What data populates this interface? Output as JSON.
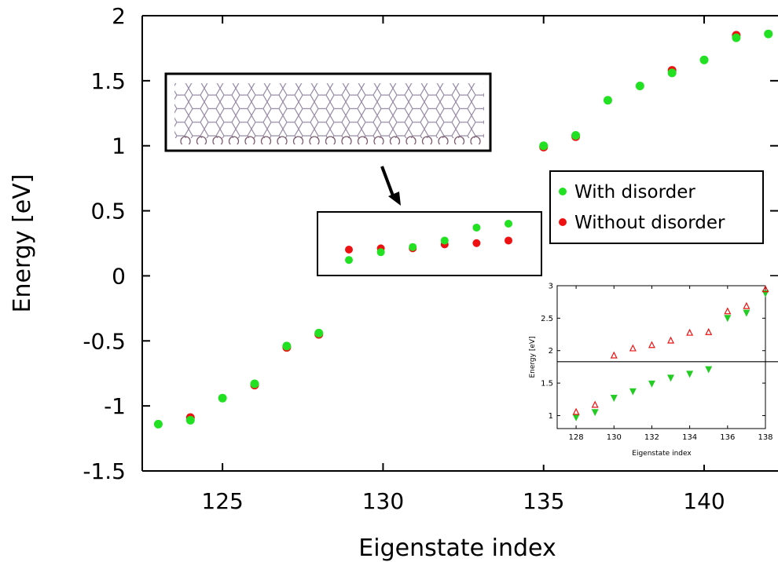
{
  "chart_data": [
    {
      "type": "scatter",
      "title": "",
      "xlabel": "Eigenstate index",
      "ylabel": "Energy [eV]",
      "xlim": [
        122.5,
        142.3
      ],
      "ylim": [
        -1.5,
        2
      ],
      "x_ticks": [
        "125",
        "130",
        "135",
        "140"
      ],
      "y_ticks": [
        "-1.5",
        "-1",
        "-0.5",
        "0",
        "0.5",
        "1",
        "1.5",
        "2"
      ],
      "grid": false,
      "legend_position": "right",
      "series": [
        {
          "name": "With disorder",
          "color": "#22e022",
          "points": [
            [
              123,
              -1.14
            ],
            [
              124,
              -1.11
            ],
            [
              125,
              -0.94
            ],
            [
              126,
              -0.83
            ],
            [
              127,
              -0.54
            ],
            [
              128,
              -0.44
            ],
            [
              135,
              1.0
            ],
            [
              136,
              1.08
            ],
            [
              137,
              1.35
            ],
            [
              138,
              1.46
            ],
            [
              139,
              1.56
            ],
            [
              140,
              1.66
            ],
            [
              141,
              1.83
            ],
            [
              142,
              1.86
            ]
          ],
          "highlight_points": [
            [
              129,
              0.12
            ],
            [
              130,
              0.18
            ],
            [
              131,
              0.22
            ],
            [
              132,
              0.27
            ],
            [
              133,
              0.37
            ],
            [
              134,
              0.4
            ]
          ]
        },
        {
          "name": "Without disorder",
          "color": "#ee1111",
          "points": [
            [
              124,
              -1.09
            ],
            [
              126,
              -0.84
            ],
            [
              127,
              -0.55
            ],
            [
              128,
              -0.45
            ],
            [
              135,
              0.99
            ],
            [
              136,
              1.07
            ],
            [
              139,
              1.58
            ],
            [
              141,
              1.85
            ]
          ],
          "highlight_points": [
            [
              129,
              0.2
            ],
            [
              130,
              0.21
            ],
            [
              131,
              0.21
            ],
            [
              132,
              0.24
            ],
            [
              133,
              0.25
            ],
            [
              134,
              0.27
            ]
          ]
        }
      ]
    },
    {
      "type": "scatter",
      "title": "",
      "xlabel": "Eigenstate index",
      "ylabel": "Energy [eV]",
      "xlim": [
        127,
        138
      ],
      "ylim": [
        0.8,
        3
      ],
      "x_ticks": [
        "128",
        "130",
        "132",
        "134",
        "136",
        "138"
      ],
      "y_ticks": [
        "1",
        "1.5",
        "2",
        "2.5",
        "3"
      ],
      "reference_line": 1.83,
      "series": [
        {
          "name": "",
          "color": "#22cc22",
          "marker": "triangle-down",
          "points": [
            [
              128,
              0.97
            ],
            [
              129,
              1.05
            ],
            [
              130,
              1.27
            ],
            [
              131,
              1.37
            ],
            [
              132,
              1.49
            ],
            [
              133,
              1.58
            ],
            [
              134,
              1.64
            ],
            [
              135,
              1.71
            ],
            [
              136,
              2.5
            ],
            [
              137,
              2.58
            ],
            [
              138,
              2.88
            ]
          ]
        },
        {
          "name": "",
          "color": "#ee1111",
          "marker": "triangle-up",
          "points": [
            [
              128,
              1.06
            ],
            [
              129,
              1.17
            ],
            [
              130,
              1.93
            ],
            [
              131,
              2.04
            ],
            [
              132,
              2.09
            ],
            [
              133,
              2.16
            ],
            [
              134,
              2.28
            ],
            [
              135,
              2.29
            ],
            [
              136,
              2.61
            ],
            [
              137,
              2.69
            ],
            [
              138,
              2.95
            ]
          ]
        }
      ]
    }
  ]
}
